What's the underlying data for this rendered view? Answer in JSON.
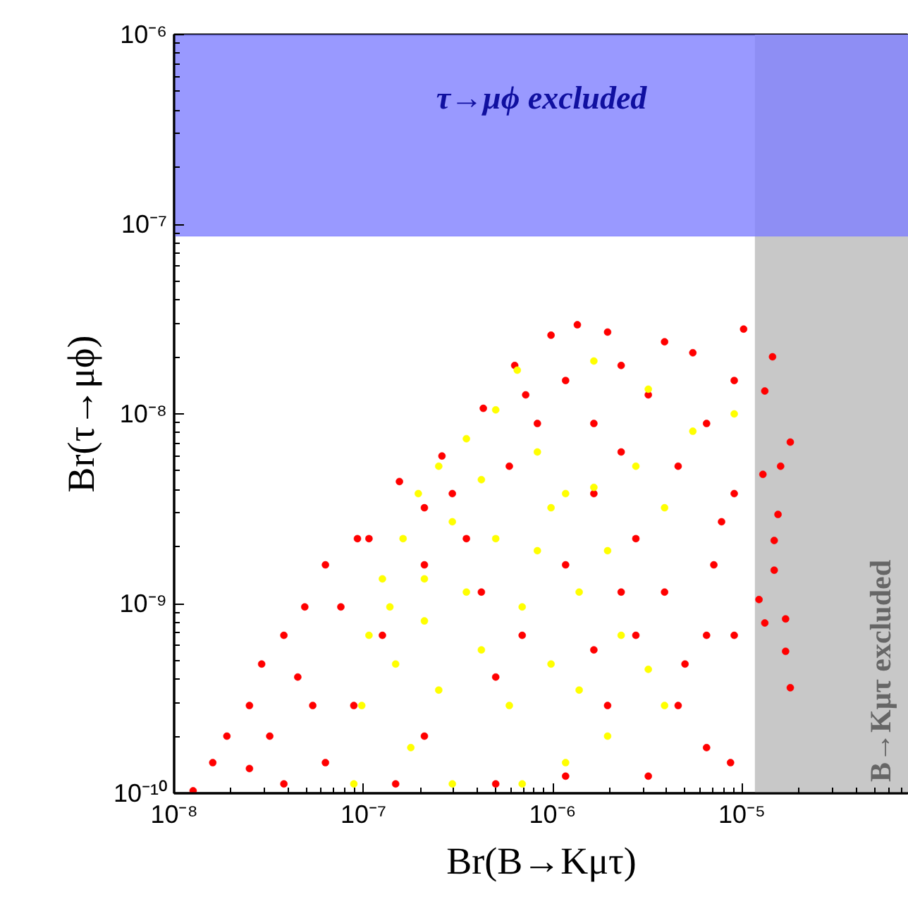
{
  "chart_data": {
    "type": "scatter",
    "xlabel": "Br(B→Kμτ)",
    "ylabel": "Br(τ→μϕ)",
    "log": "xy",
    "grid": false,
    "marker": "circle",
    "xlim": [
      1e-08,
      7.6e-05
    ],
    "ylim": [
      1e-10,
      1e-06
    ],
    "xticks": [
      {
        "value": 1e-08,
        "label": "10⁻⁸"
      },
      {
        "value": 1e-07,
        "label": "10⁻⁷"
      },
      {
        "value": 1e-06,
        "label": "10⁻⁶"
      },
      {
        "value": 1e-05,
        "label": "10⁻⁵"
      }
    ],
    "yticks": [
      {
        "value": 1e-10,
        "label": "10⁻¹⁰"
      },
      {
        "value": 1e-09,
        "label": "10⁻⁹"
      },
      {
        "value": 1e-08,
        "label": "10⁻⁸"
      },
      {
        "value": 1e-07,
        "label": "10⁻⁷"
      },
      {
        "value": 1e-06,
        "label": "10⁻⁶"
      }
    ],
    "bands": [
      {
        "axis": "x",
        "from": 1.17e-05,
        "to": 7.6e-05,
        "label": "B→Kμτ excluded",
        "color": "#c8c8c8"
      },
      {
        "axis": "y",
        "from": 8.65e-08,
        "to": 1e-06,
        "label": "τ→μϕ excluded",
        "color": "#8080ff"
      }
    ],
    "series": [
      {
        "color": "#ff0000",
        "x": [
          1.26e-08,
          1.6e-08,
          1.9e-08,
          2.5e-08,
          2.9e-08,
          3.8e-08,
          4.9e-08,
          6.3e-08,
          9.3e-08,
          1.55e-07,
          2.6e-07,
          4.3e-07,
          6.3e-07,
          9.8e-07,
          1.35e-06,
          1.95e-06,
          3.9e-06,
          1.02e-05,
          9.1e-06,
          6.5e-06,
          9.1e-06,
          7.1e-06,
          9.1e-06,
          8.7e-06,
          4.6e-06,
          2.75e-06,
          3.9e-06,
          2.75e-06,
          2.3e-06,
          4.6e-06,
          3.2e-06,
          1.65e-06,
          1.17e-06,
          8.3e-07,
          5.9e-07,
          1.65e-06,
          1.17e-06,
          1.95e-06,
          1.17e-06,
          3.2e-06,
          5e-07,
          3.5e-07,
          2.1e-07,
          1.26e-07,
          8.9e-08,
          6.3e-08,
          3.8e-08,
          4.5e-08,
          7.6e-08,
          1.07e-07,
          2.95e-07,
          4.2e-07,
          6.9e-07,
          2.1e-07,
          5e-07,
          1.48e-07,
          2.5e-08,
          3.2e-08,
          5.4e-08,
          6.5e-06,
          5e-06,
          7.8e-06,
          5.5e-06,
          2.3e-06,
          7.2e-07,
          2.1e-07,
          2.3e-06,
          1.65e-06,
          6.5e-06,
          1.45e-05,
          1.32e-05,
          1.8e-05,
          1.6e-05,
          1.29e-05,
          1.55e-05,
          1.48e-05,
          1.32e-05,
          1.7e-05,
          1.7e-05,
          1.8e-05,
          1.48e-05,
          1.23e-05
        ],
        "values": [
          1.03e-10,
          1.45e-10,
          2e-10,
          2.9e-10,
          4.8e-10,
          6.8e-10,
          9.6e-10,
          1.6e-09,
          2.2e-09,
          4.4e-09,
          6e-09,
          1.07e-08,
          1.8e-08,
          2.6e-08,
          2.95e-08,
          2.7e-08,
          2.4e-08,
          2.8e-08,
          1.5e-08,
          8.9e-09,
          3.8e-09,
          1.6e-09,
          6.8e-10,
          1.45e-10,
          2.9e-10,
          6.8e-10,
          1.15e-09,
          2.2e-09,
          6.3e-09,
          5.3e-09,
          1.26e-08,
          8.9e-09,
          1.5e-08,
          8.9e-09,
          5.3e-09,
          3.8e-09,
          1.6e-09,
          2.9e-10,
          1.23e-10,
          1.23e-10,
          4.1e-10,
          2.2e-09,
          1.6e-09,
          6.8e-10,
          2.9e-10,
          1.45e-10,
          1.12e-10,
          4.1e-10,
          9.6e-10,
          2.2e-09,
          3.8e-09,
          1.15e-09,
          6.8e-10,
          2e-10,
          1.12e-10,
          1.12e-10,
          1.35e-10,
          2e-10,
          2.9e-10,
          6.8e-10,
          4.8e-10,
          2.7e-09,
          2.1e-08,
          1.8e-08,
          1.26e-08,
          3.2e-09,
          1.15e-09,
          5.7e-10,
          1.74e-10,
          2e-08,
          1.32e-08,
          7.1e-09,
          5.3e-09,
          4.8e-09,
          2.95e-09,
          2.15e-09,
          7.9e-10,
          8.3e-10,
          5.6e-10,
          3.6e-10,
          1.5e-09,
          1.05e-09
        ]
      },
      {
        "color": "#ffff00",
        "x": [
          8.9e-08,
          9.8e-08,
          1.07e-07,
          1.26e-07,
          1.62e-07,
          1.95e-07,
          2.5e-07,
          3.5e-07,
          5e-07,
          6.5e-07,
          1.65e-06,
          3.2e-06,
          9.1e-06,
          5.5e-06,
          2.75e-06,
          1.65e-06,
          1.17e-06,
          8.3e-07,
          4.2e-07,
          2.95e-07,
          5e-07,
          8.3e-07,
          1.38e-06,
          2.3e-06,
          3.2e-06,
          3.9e-06,
          1.95e-06,
          1.17e-06,
          6.9e-07,
          2.95e-07,
          1.78e-07,
          2.5e-07,
          4.2e-07,
          2.1e-07,
          3.5e-07,
          6.9e-07,
          9.8e-07,
          5.9e-07,
          1.38e-06,
          1.48e-07,
          1.38e-07,
          2.1e-07,
          1.95e-06,
          3.9e-06,
          9.8e-07
        ],
        "values": [
          1.12e-10,
          2.9e-10,
          6.8e-10,
          1.35e-09,
          2.2e-09,
          3.8e-09,
          5.3e-09,
          7.4e-09,
          1.05e-08,
          1.7e-08,
          1.9e-08,
          1.35e-08,
          1e-08,
          8.1e-09,
          5.3e-09,
          4.1e-09,
          3.8e-09,
          6.3e-09,
          4.5e-09,
          2.7e-09,
          2.2e-09,
          1.9e-09,
          1.15e-09,
          6.8e-10,
          4.5e-10,
          2.9e-10,
          2e-10,
          1.45e-10,
          1.12e-10,
          1.12e-10,
          1.74e-10,
          3.5e-10,
          5.7e-10,
          8.1e-10,
          1.15e-09,
          9.6e-10,
          4.8e-10,
          2.9e-10,
          3.5e-10,
          4.8e-10,
          9.6e-10,
          1.35e-09,
          1.9e-09,
          3.2e-09,
          3.2e-09
        ]
      }
    ]
  }
}
